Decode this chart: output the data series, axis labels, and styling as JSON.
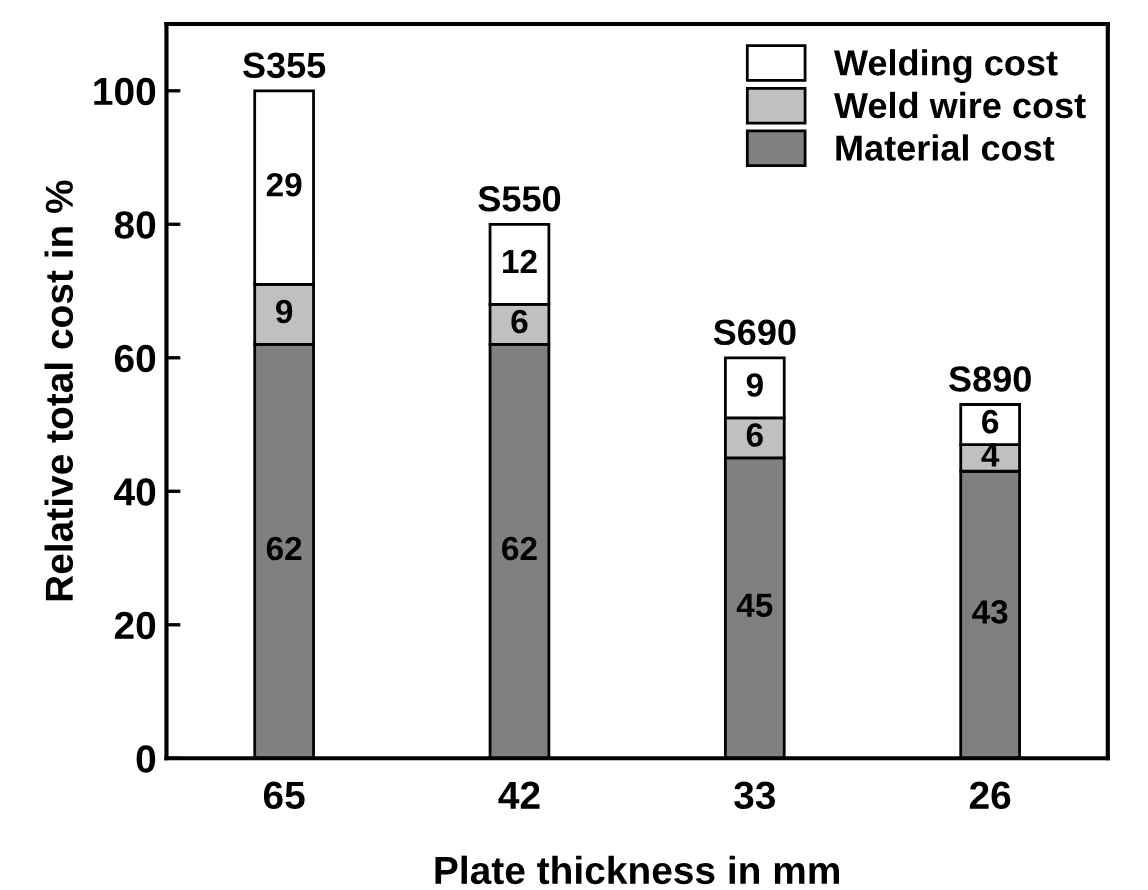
{
  "chart_data": {
    "type": "bar",
    "stacked": true,
    "xlabel": "Plate thickness in mm",
    "ylabel": "Relative total cost in %",
    "categories": [
      "65",
      "42",
      "33",
      "26"
    ],
    "series": [
      {
        "name": "Material cost",
        "color": "#808080",
        "values": [
          62,
          62,
          45,
          43
        ]
      },
      {
        "name": "Weld wire cost",
        "color": "#c0c0c0",
        "values": [
          9,
          6,
          6,
          4
        ]
      },
      {
        "name": "Welding cost",
        "color": "#ffffff",
        "values": [
          29,
          12,
          9,
          6
        ]
      }
    ],
    "data_labels": true,
    "ylim": [
      0,
      110
    ],
    "yticks": [
      0,
      20,
      40,
      60,
      80,
      100
    ],
    "grid": false,
    "legend": "top right",
    "annotations": [
      {
        "text": "S355",
        "x": "65",
        "y": 100
      },
      {
        "text": "S550",
        "x": "42",
        "y": 80
      },
      {
        "text": "S690",
        "x": "33",
        "y": 60
      },
      {
        "text": "S890",
        "x": "26",
        "y": 53
      }
    ]
  }
}
